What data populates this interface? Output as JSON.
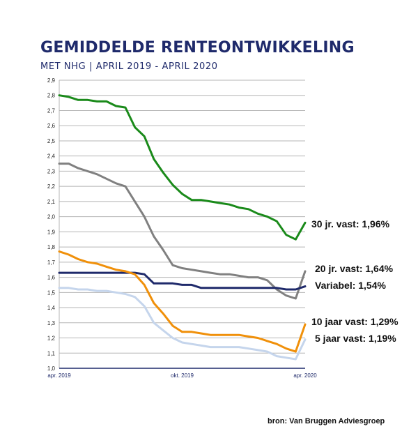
{
  "header": {
    "title": "GEMIDDELDE RENTEONTWIKKELING",
    "subtitle": "MET NHG | APRIL 2019 - APRIL 2020"
  },
  "source": "bron: Van Bruggen Adviesgroep",
  "colors": {
    "title": "#1f2a6b",
    "grid": "#b5b5b5",
    "axis": "#1f2a6b"
  },
  "chart_data": {
    "type": "line",
    "title": "GEMIDDELDE RENTEONTWIKKELING",
    "subtitle": "MET NHG | APRIL 2019 - APRIL 2020",
    "xlabel": "",
    "ylabel": "",
    "ylim": [
      1.0,
      2.9
    ],
    "y_ticks": [
      "1,0",
      "1,1",
      "1,2",
      "1,3",
      "1,4",
      "1,5",
      "1,6",
      "1,7",
      "1,8",
      "1,9",
      "2,0",
      "2,1",
      "2,2",
      "2,3",
      "2,4",
      "2,5",
      "2,6",
      "2,7",
      "2,8",
      "2,9"
    ],
    "x_ticks": [
      {
        "label": "apr. 2019",
        "week": 0
      },
      {
        "label": "okt. 2019",
        "week": 26
      },
      {
        "label": "apr. 2020",
        "week": 52
      }
    ],
    "grid": true,
    "legend": "none",
    "x": [
      0,
      2,
      4,
      6,
      8,
      10,
      12,
      14,
      16,
      18,
      20,
      22,
      24,
      26,
      28,
      30,
      32,
      34,
      36,
      38,
      40,
      42,
      44,
      46,
      48,
      50,
      52
    ],
    "series": [
      {
        "name": "30 jr. vast",
        "label": "30 jr. vast: 1,96%",
        "color": "#1a8a1a",
        "values": [
          2.8,
          2.79,
          2.77,
          2.77,
          2.76,
          2.76,
          2.73,
          2.72,
          2.59,
          2.53,
          2.38,
          2.29,
          2.21,
          2.15,
          2.11,
          2.11,
          2.1,
          2.09,
          2.08,
          2.06,
          2.05,
          2.02,
          2.0,
          1.97,
          1.88,
          1.85,
          1.96
        ]
      },
      {
        "name": "20 jr. vast",
        "label": "20 jr. vast: 1,64%",
        "color": "#808080",
        "values": [
          2.35,
          2.35,
          2.32,
          2.3,
          2.28,
          2.25,
          2.22,
          2.2,
          2.1,
          2.0,
          1.87,
          1.78,
          1.68,
          1.66,
          1.65,
          1.64,
          1.63,
          1.62,
          1.62,
          1.61,
          1.6,
          1.6,
          1.58,
          1.52,
          1.48,
          1.46,
          1.64
        ]
      },
      {
        "name": "Variabel",
        "label": "Variabel: 1,54%",
        "color": "#1f2a6b",
        "values": [
          1.63,
          1.63,
          1.63,
          1.63,
          1.63,
          1.63,
          1.63,
          1.63,
          1.63,
          1.62,
          1.56,
          1.56,
          1.56,
          1.55,
          1.55,
          1.53,
          1.53,
          1.53,
          1.53,
          1.53,
          1.53,
          1.53,
          1.53,
          1.53,
          1.52,
          1.52,
          1.54
        ]
      },
      {
        "name": "10 jaar vast",
        "label": "10 jaar vast: 1,29%",
        "color": "#f0900a",
        "values": [
          1.77,
          1.75,
          1.72,
          1.7,
          1.69,
          1.67,
          1.65,
          1.64,
          1.62,
          1.55,
          1.43,
          1.36,
          1.28,
          1.24,
          1.24,
          1.23,
          1.22,
          1.22,
          1.22,
          1.22,
          1.21,
          1.2,
          1.18,
          1.16,
          1.13,
          1.11,
          1.29
        ]
      },
      {
        "name": "5 jaar vast",
        "label": "5 jaar vast: 1,19%",
        "color": "#c5d5ec",
        "values": [
          1.53,
          1.53,
          1.52,
          1.52,
          1.51,
          1.51,
          1.5,
          1.49,
          1.47,
          1.41,
          1.3,
          1.25,
          1.2,
          1.17,
          1.16,
          1.15,
          1.14,
          1.14,
          1.14,
          1.14,
          1.13,
          1.12,
          1.11,
          1.08,
          1.07,
          1.06,
          1.19
        ]
      }
    ]
  }
}
